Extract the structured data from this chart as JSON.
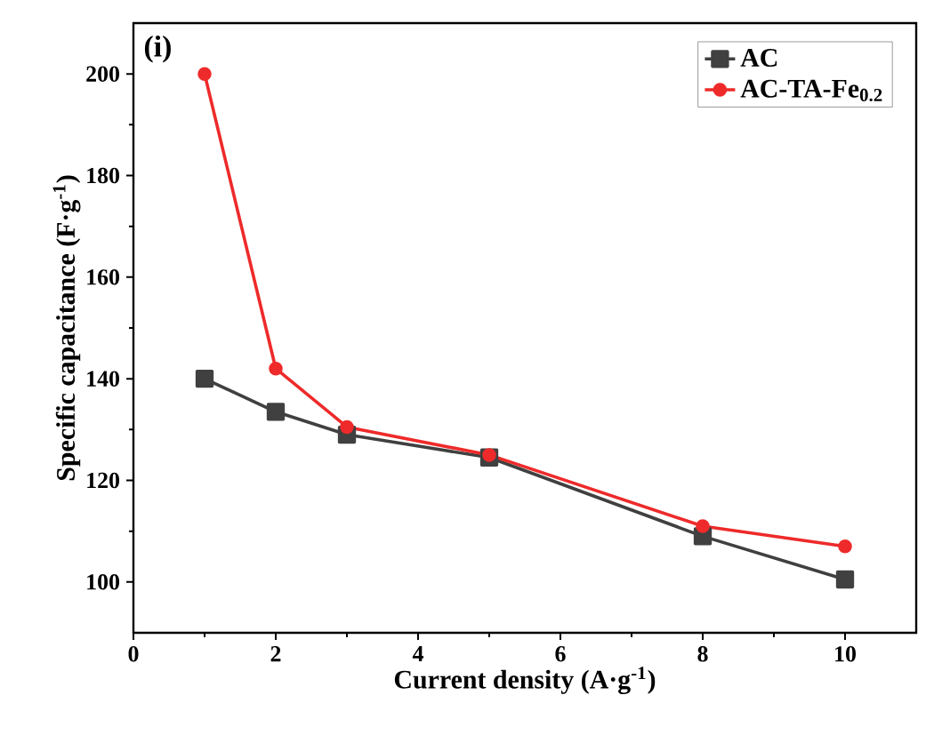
{
  "chart_data": {
    "type": "line",
    "xlabel": "Current density (A·g$^{-1}$)",
    "ylabel": "Specific capacitance (F·g$^{-1}$)",
    "annotations": [
      "(i)"
    ],
    "x": [
      1,
      2,
      3,
      5,
      8,
      10
    ],
    "series": [
      {
        "name": "AC",
        "color": "#404040",
        "marker": "square",
        "values": [
          140,
          133.5,
          129,
          124.5,
          109,
          100.5
        ]
      },
      {
        "name": "AC-TA-Fe$_{0.2}$",
        "color": "#ee2a2a",
        "marker": "circle",
        "values": [
          200,
          142,
          130.5,
          125,
          111,
          107
        ]
      }
    ],
    "xlim": [
      0,
      11
    ],
    "ylim": [
      90,
      210
    ],
    "xticks": [
      0,
      2,
      4,
      6,
      8,
      10
    ],
    "yticks": [
      100,
      120,
      140,
      160,
      180,
      200
    ],
    "legend": "top right",
    "grid": false,
    "line_style": "solid"
  }
}
